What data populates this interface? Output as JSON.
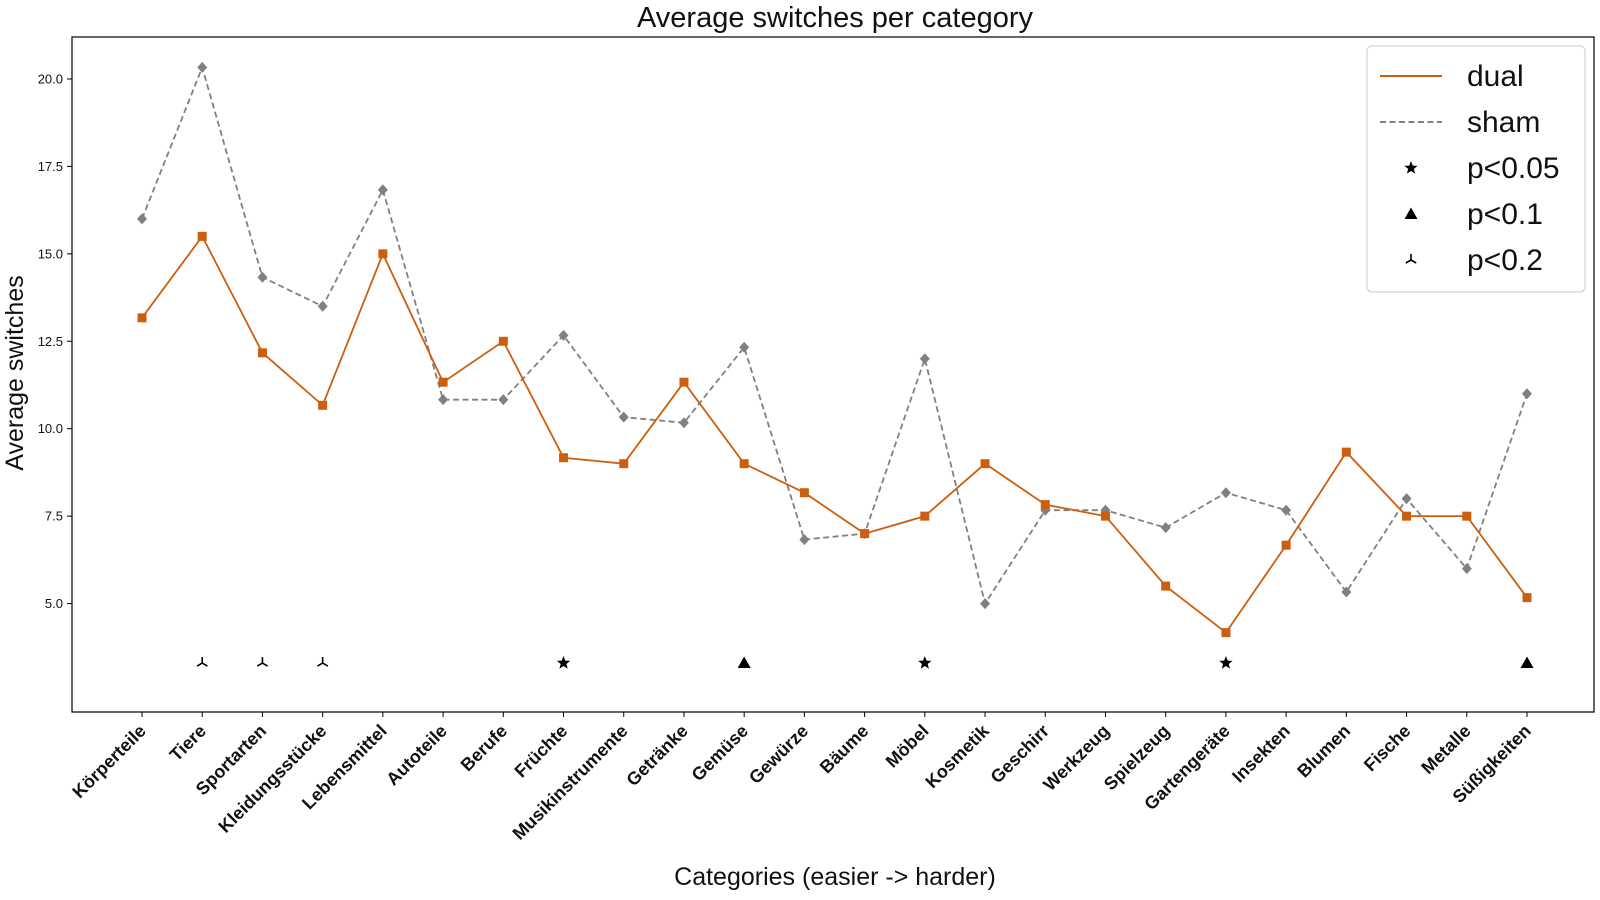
{
  "chart_data": {
    "type": "line",
    "title": "Average switches per category",
    "xlabel": "Categories (easier -> harder)",
    "ylabel": "Average switches",
    "categories": [
      "Körperteile",
      "Tiere",
      "Sportarten",
      "Kleidungsstücke",
      "Lebensmittel",
      "Autoteile",
      "Berufe",
      "Früchte",
      "Musikinstrumente",
      "Getränke",
      "Gemüse",
      "Gewürze",
      "Bäume",
      "Möbel",
      "Kosmetik",
      "Geschirr",
      "Werkzeug",
      "Spielzeug",
      "Gartengeräte",
      "Insekten",
      "Blumen",
      "Fische",
      "Metalle",
      "Süßigkeiten"
    ],
    "ylim": [
      1.9,
      21.2
    ],
    "yticks": [
      "5.0",
      "7.5",
      "10.0",
      "12.5",
      "15.0",
      "17.5",
      "20.0"
    ],
    "grid": false,
    "legend_position": "top-right",
    "series": [
      {
        "name": "dual",
        "color": "#cc5f0f",
        "line_style": "solid",
        "marker": "square",
        "values": [
          13.17,
          15.5,
          12.17,
          10.67,
          15.0,
          11.33,
          12.5,
          9.17,
          9.0,
          11.33,
          9.0,
          8.17,
          7.0,
          7.5,
          9.0,
          7.83,
          7.5,
          5.5,
          4.17,
          6.67,
          9.33,
          7.5,
          7.5,
          5.17
        ]
      },
      {
        "name": "sham",
        "color": "#808080",
        "line_style": "dashed",
        "marker": "diamond",
        "values": [
          16.0,
          20.33,
          14.33,
          13.5,
          16.83,
          10.83,
          10.83,
          12.67,
          10.33,
          10.17,
          12.33,
          6.83,
          7.0,
          12.0,
          5.0,
          7.67,
          7.67,
          7.17,
          8.17,
          7.67,
          5.33,
          8.0,
          6.0,
          11.0
        ]
      }
    ],
    "significance_y": 3.3,
    "significance": [
      {
        "category": "Tiere",
        "level": "p<0.2"
      },
      {
        "category": "Sportarten",
        "level": "p<0.2"
      },
      {
        "category": "Kleidungsstücke",
        "level": "p<0.2"
      },
      {
        "category": "Früchte",
        "level": "p<0.05"
      },
      {
        "category": "Gemüse",
        "level": "p<0.1"
      },
      {
        "category": "Möbel",
        "level": "p<0.05"
      },
      {
        "category": "Gartengeräte",
        "level": "p<0.05"
      },
      {
        "category": "Süßigkeiten",
        "level": "p<0.1"
      }
    ],
    "legend": [
      {
        "label": "dual",
        "kind": "solid-line"
      },
      {
        "label": "sham",
        "kind": "dashed-line"
      },
      {
        "label": "p<0.05",
        "kind": "star-marker"
      },
      {
        "label": "p<0.1",
        "kind": "triangle-marker"
      },
      {
        "label": "p<0.2",
        "kind": "tri-marker"
      }
    ]
  }
}
